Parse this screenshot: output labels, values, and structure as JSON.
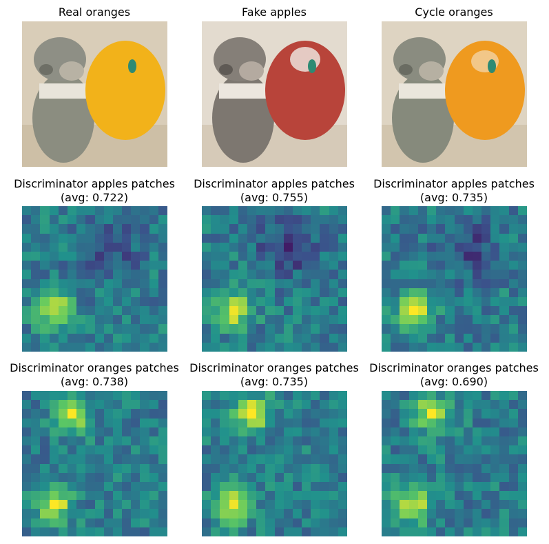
{
  "chart_data": [
    {
      "type": "image-grid",
      "titles": [
        "Real oranges",
        "Fake apples",
        "Cycle oranges"
      ],
      "images": [
        {
          "name": "real-oranges",
          "fruit_color": "#f2b21a"
        },
        {
          "name": "fake-apples",
          "fruit_color": "#b8443a"
        },
        {
          "name": "cycle-oranges",
          "fruit_color": "#ef9a1f"
        }
      ]
    },
    {
      "type": "heatmap",
      "colormap": "viridis",
      "title_prefix": "Discriminator apples patches",
      "averages": [
        "(avg: 0.722)",
        "(avg: 0.755)",
        "(avg: 0.735)"
      ],
      "hotspot": {
        "row": 11,
        "col": 3
      }
    },
    {
      "type": "heatmap",
      "colormap": "viridis",
      "title_prefix": "Discriminator oranges patches",
      "averages": [
        "(avg: 0.738)",
        "(avg: 0.735)",
        "(avg: 0.690)"
      ],
      "hotspots": [
        {
          "row": 2,
          "col": 5
        },
        {
          "row": 12,
          "col": 3
        }
      ]
    }
  ],
  "rows": [
    {
      "cells": [
        {
          "title": "Real oranges"
        },
        {
          "title": "Fake apples"
        },
        {
          "title": "Cycle oranges"
        }
      ]
    },
    {
      "cells": [
        {
          "title1": "Discriminator apples patches",
          "title2": "(avg: 0.722)"
        },
        {
          "title1": "Discriminator apples patches",
          "title2": "(avg: 0.755)"
        },
        {
          "title1": "Discriminator apples patches",
          "title2": "(avg: 0.735)"
        }
      ]
    },
    {
      "cells": [
        {
          "title1": "Discriminator oranges patches",
          "title2": "(avg: 0.738)"
        },
        {
          "title1": "Discriminator oranges patches",
          "title2": "(avg: 0.735)"
        },
        {
          "title1": "Discriminator oranges patches",
          "title2": "(avg: 0.690)"
        }
      ]
    }
  ]
}
